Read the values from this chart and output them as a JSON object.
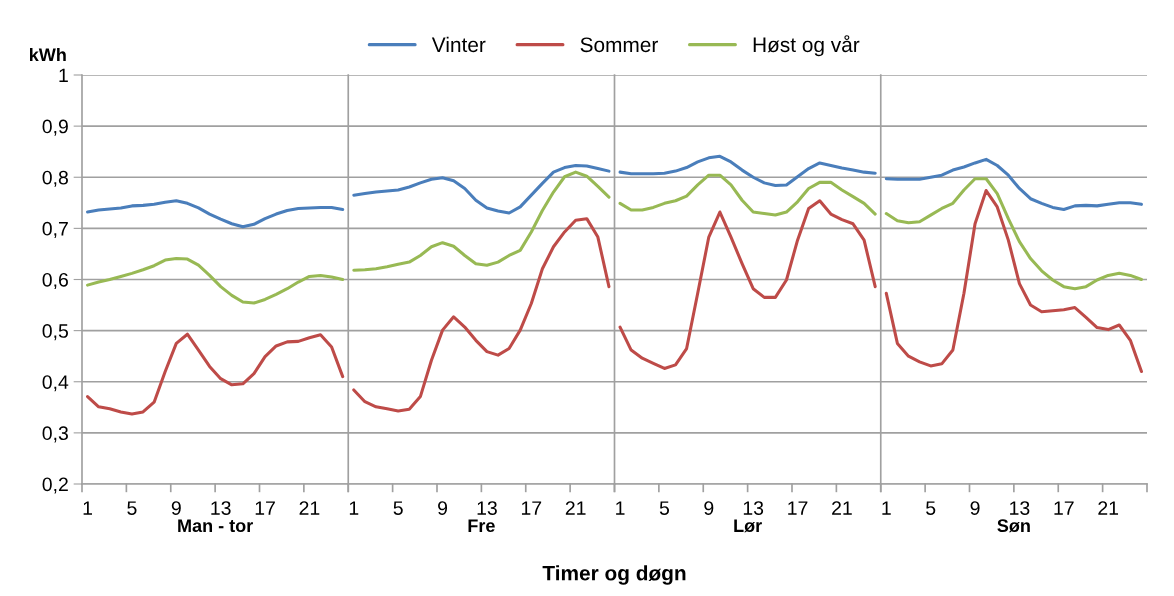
{
  "chart_data": [
    {
      "type": "line",
      "ylabel": "kWh",
      "xlabel": "Man - tor",
      "annotations": [
        "Timer og døgn"
      ],
      "categories": [
        "1",
        null,
        null,
        null,
        "5",
        null,
        null,
        null,
        "9",
        null,
        null,
        null,
        "13",
        null,
        null,
        null,
        "17",
        null,
        null,
        null,
        "21",
        null,
        null,
        null
      ],
      "series": [
        {
          "name": "Vinter",
          "color": "#4a7ebb",
          "values": [
            0.732,
            0.736,
            0.738,
            0.74,
            0.744,
            0.745,
            0.747,
            0.751,
            0.754,
            0.749,
            0.74,
            0.728,
            0.718,
            0.709,
            0.703,
            0.708,
            0.719,
            0.728,
            0.735,
            0.739,
            0.74,
            0.741,
            0.741,
            0.737
          ]
        },
        {
          "name": "Sommer",
          "color": "#be4b48",
          "values": [
            0.371,
            0.351,
            0.347,
            0.341,
            0.337,
            0.341,
            0.36,
            0.42,
            0.475,
            0.493,
            0.462,
            0.43,
            0.406,
            0.394,
            0.396,
            0.416,
            0.449,
            0.47,
            0.478,
            0.479,
            0.486,
            0.492,
            0.468,
            0.41
          ]
        },
        {
          "name": "Høst og vår",
          "color": "#98b954",
          "values": [
            0.589,
            0.595,
            0.6,
            0.606,
            0.612,
            0.619,
            0.627,
            0.638,
            0.641,
            0.64,
            0.628,
            0.608,
            0.586,
            0.569,
            0.556,
            0.554,
            0.561,
            0.571,
            0.582,
            0.595,
            0.606,
            0.608,
            0.605,
            0.6
          ]
        }
      ],
      "ylim": [
        0.2,
        1
      ],
      "yticks": [
        {
          "value": 0.2,
          "label": "0,2"
        },
        {
          "value": 0.3,
          "label": "0,3"
        },
        {
          "value": 0.4,
          "label": "0,4"
        },
        {
          "value": 0.5,
          "label": "0,5"
        },
        {
          "value": 0.6,
          "label": "0,6"
        },
        {
          "value": 0.7,
          "label": "0,7"
        },
        {
          "value": 0.8,
          "label": "0,8"
        },
        {
          "value": 0.9,
          "label": "0,9"
        },
        1
      ],
      "grid": "y",
      "legend": "top",
      "marker": "none",
      "line_style": "solid"
    },
    {
      "type": "line",
      "xlabel": "Fre",
      "categories": [
        "1",
        null,
        null,
        null,
        "5",
        null,
        null,
        null,
        "9",
        null,
        null,
        null,
        "13",
        null,
        null,
        null,
        "17",
        null,
        null,
        null,
        "21",
        null,
        null,
        null
      ],
      "series": [
        {
          "color": "#4a7ebb",
          "values": [
            0.765,
            0.768,
            0.771,
            0.773,
            0.775,
            0.781,
            0.789,
            0.796,
            0.799,
            0.793,
            0.778,
            0.755,
            0.74,
            0.734,
            0.73,
            0.742,
            0.765,
            0.788,
            0.81,
            0.819,
            0.823,
            0.822,
            0.817,
            0.812
          ]
        },
        {
          "color": "#be4b48",
          "values": [
            0.384,
            0.361,
            0.351,
            0.347,
            0.343,
            0.346,
            0.371,
            0.442,
            0.501,
            0.527,
            0.507,
            0.481,
            0.459,
            0.452,
            0.465,
            0.501,
            0.553,
            0.621,
            0.664,
            0.693,
            0.716,
            0.719,
            0.683,
            0.586
          ]
        },
        {
          "color": "#98b954",
          "values": [
            0.618,
            0.619,
            0.621,
            0.625,
            0.63,
            0.634,
            0.647,
            0.664,
            0.672,
            0.665,
            0.647,
            0.631,
            0.628,
            0.634,
            0.647,
            0.657,
            0.693,
            0.735,
            0.771,
            0.801,
            0.81,
            0.802,
            0.782,
            0.761
          ]
        }
      ],
      "ylim": [
        0.2,
        1
      ],
      "yticks": [
        0.2,
        0.3,
        0.4,
        0.5,
        0.6,
        0.7,
        0.8,
        0.9,
        1
      ],
      "tick_labels": "x",
      "grid": "y",
      "marker": "none",
      "line_style": "solid"
    },
    {
      "type": "line",
      "xlabel": "Lør",
      "categories": [
        "1",
        null,
        null,
        null,
        "5",
        null,
        null,
        null,
        "9",
        null,
        null,
        null,
        "13",
        null,
        null,
        null,
        "17",
        null,
        null,
        null,
        "21",
        null,
        null,
        null
      ],
      "series": [
        {
          "color": "#4a7ebb",
          "values": [
            0.81,
            0.807,
            0.807,
            0.807,
            0.808,
            0.812,
            0.819,
            0.83,
            0.838,
            0.841,
            0.83,
            0.814,
            0.8,
            0.789,
            0.784,
            0.785,
            0.801,
            0.817,
            0.828,
            0.823,
            0.818,
            0.814,
            0.81,
            0.808
          ]
        },
        {
          "color": "#be4b48",
          "values": [
            0.507,
            0.462,
            0.446,
            0.436,
            0.426,
            0.433,
            0.465,
            0.573,
            0.683,
            0.732,
            0.683,
            0.631,
            0.582,
            0.565,
            0.565,
            0.599,
            0.677,
            0.739,
            0.754,
            0.728,
            0.717,
            0.709,
            0.677,
            0.586
          ]
        },
        {
          "color": "#98b954",
          "values": [
            0.749,
            0.736,
            0.736,
            0.741,
            0.749,
            0.754,
            0.763,
            0.785,
            0.804,
            0.804,
            0.785,
            0.755,
            0.732,
            0.729,
            0.726,
            0.732,
            0.752,
            0.778,
            0.79,
            0.79,
            0.775,
            0.762,
            0.749,
            0.728
          ]
        }
      ],
      "ylim": [
        0.2,
        1
      ],
      "yticks": [
        0.2,
        0.3,
        0.4,
        0.5,
        0.6,
        0.7,
        0.8,
        0.9,
        1
      ],
      "tick_labels": "x",
      "grid": "y",
      "marker": "none",
      "line_style": "solid"
    },
    {
      "type": "line",
      "xlabel": "Søn",
      "categories": [
        "1",
        null,
        null,
        null,
        "5",
        null,
        null,
        null,
        "9",
        null,
        null,
        null,
        "13",
        null,
        null,
        null,
        "17",
        null,
        null,
        null,
        "21",
        null,
        null,
        null
      ],
      "series": [
        {
          "color": "#4a7ebb",
          "values": [
            0.797,
            0.796,
            0.796,
            0.796,
            0.8,
            0.804,
            0.814,
            0.82,
            0.828,
            0.835,
            0.823,
            0.804,
            0.778,
            0.758,
            0.749,
            0.741,
            0.737,
            0.744,
            0.745,
            0.744,
            0.747,
            0.75,
            0.75,
            0.747
          ]
        },
        {
          "color": "#be4b48",
          "values": [
            0.573,
            0.475,
            0.45,
            0.439,
            0.431,
            0.435,
            0.462,
            0.573,
            0.709,
            0.774,
            0.742,
            0.677,
            0.592,
            0.55,
            0.537,
            0.539,
            0.541,
            0.545,
            0.526,
            0.506,
            0.502,
            0.511,
            0.481,
            0.42
          ]
        },
        {
          "color": "#98b954",
          "values": [
            0.729,
            0.715,
            0.711,
            0.713,
            0.726,
            0.739,
            0.749,
            0.775,
            0.797,
            0.797,
            0.768,
            0.719,
            0.674,
            0.641,
            0.617,
            0.599,
            0.586,
            0.582,
            0.586,
            0.599,
            0.608,
            0.612,
            0.608,
            0.6
          ]
        }
      ],
      "ylim": [
        0.2,
        1
      ],
      "yticks": [
        0.2,
        0.3,
        0.4,
        0.5,
        0.6,
        0.7,
        0.8,
        0.9,
        1
      ],
      "tick_labels": "x",
      "grid": "y",
      "marker": "none",
      "line_style": "solid"
    }
  ]
}
